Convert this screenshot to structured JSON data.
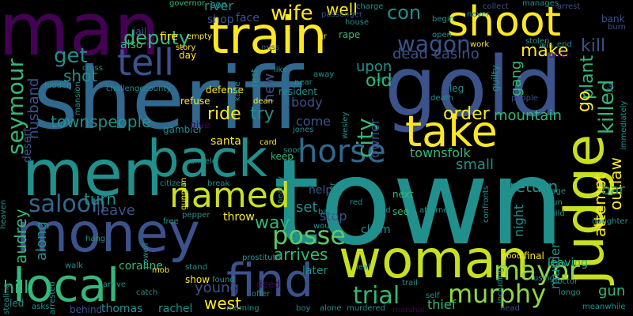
{
  "palette": {
    "background": "#000000",
    "purple": "#440154",
    "indigo": "#3b528b",
    "blue": "#31688e",
    "teal": "#21908d",
    "green": "#35b779",
    "lime": "#90d743",
    "yellow": "#fde725"
  },
  "words": {
    "town": "town",
    "sheriff": "sheriff",
    "gold": "gold",
    "man": "man",
    "men": "men",
    "money": "money",
    "woman": "woman",
    "train": "train",
    "shoot": "shoot",
    "back": "back",
    "local": "local",
    "judge": "judge",
    "take": "take",
    "find": "find",
    "tell": "tell",
    "named": "named",
    "horse": "horse",
    "posse": "posse",
    "mayor": "mayor",
    "murphy": "murphy",
    "trial": "trial",
    "saloon": "saloon",
    "seymour": "seymour",
    "wagon": "wagon",
    "deputy": "deputy",
    "wife": "wife",
    "get": "get",
    "killed": "killed",
    "city": "city",
    "old": "old",
    "con": "con",
    "well": "well",
    "shot": "shot",
    "dead": "dead",
    "casino": "casino",
    "make": "make",
    "kill": "kill",
    "plant": "plant",
    "go": "go",
    "townspeople": "townspeople",
    "townsfolk": "townsfolk",
    "ride": "ride",
    "try": "try",
    "come": "come",
    "order": "order",
    "mountain": "mountain",
    "return": "return",
    "outlaw": "outlaw",
    "attempt": "attempt",
    "small": "small",
    "turn": "turn",
    "leave": "leave",
    "way": "way",
    "set": "set",
    "stop": "stop",
    "arrives": "arrives",
    "young": "young",
    "west": "west",
    "hill": "hill",
    "audrey": "audrey",
    "along": "along",
    "husband": "husband",
    "upon": "upon",
    "new": "new",
    "body": "body",
    "owner": "owner",
    "gang": "gang",
    "night": "night",
    "murder": "murder",
    "bar": "bar",
    "gun": "gun",
    "leaving": "leaving",
    "river": "river",
    "shop": "shop",
    "face": "face",
    "help": "help",
    "santa": "santa",
    "desert": "desert",
    "later": "later",
    "claim": "claim",
    "coraline": "coraline",
    "show": "show",
    "also": "also",
    "fire": "fire",
    "defense": "defense",
    "resident": "resident",
    "refuse": "refuse",
    "gambler": "gambler",
    "thomas": "thomas",
    "rachel": "rachel",
    "thief": "thief",
    "final": "final",
    "next": "next",
    "see": "see",
    "keep": "keep",
    "son": "son",
    "governor": "governor",
    "day": "day",
    "jail": "jail",
    "miss": "miss",
    "passenger": "passenger",
    "rape": "rape",
    "collect": "collect",
    "arrest": "arrest",
    "bank": "bank",
    "burn": "burn",
    "people": "people",
    "life": "life",
    "leg": "leg",
    "guilty": "guilty",
    "death": "death",
    "wesley": "wesley",
    "katie": "katie",
    "rest": "rest",
    "dean": "dean",
    "jones": "jones",
    "soon": "soon",
    "card": "card",
    "give": "give",
    "angelo": "angelo",
    "break": "break",
    "citizen": "citizen",
    "free": "free",
    "pepper": "pepper",
    "story": "story",
    "throw": "throw",
    "led": "led",
    "asks": "asks",
    "walk": "walk",
    "behind": "behind",
    "morning": "morning",
    "boy": "boy",
    "alone": "alone",
    "murdered": "murdered",
    "head": "head",
    "longo": "longo",
    "meanwhile": "meanwhile",
    "doctor": "doctor",
    "stand": "stand",
    "found": "found",
    "arrive": "arrive",
    "offer": "offer",
    "deed": "deed",
    "leaf": "leaf",
    "trail": "trail",
    "good": "good",
    "child": "child",
    "run": "run",
    "page": "page",
    "stolen": "stolen",
    "end": "end",
    "win": "win",
    "work": "work",
    "begin": "begin",
    "never": "never",
    "charge": "charge",
    "house": "house",
    "jr": "jr",
    "empty": "empty",
    "challenge": "challenge",
    "county": "county",
    "hidden": "hidden",
    "mansion": "mansion",
    "cross": "cross",
    "heaven": "heaven",
    "hang": "hang",
    "stealing": "stealing",
    "arrested": "arrested",
    "gunman": "gunman",
    "mob": "mob",
    "nearby": "nearby",
    "together": "together",
    "would": "would",
    "prostitute": "prostitute",
    "catch": "catch",
    "using": "using",
    "draw": "draw",
    "including": "including",
    "marshal": "marshal",
    "like": "like",
    "near": "near",
    "away": "away",
    "carry": "carry",
    "red": "red",
    "band": "band",
    "hold": "hold",
    "attorney": "attorney",
    "confronts": "confronts",
    "daughter": "daughter",
    "immediately": "immediately",
    "self": "self",
    "open": "open",
    "taken": "taken",
    "manages": "manages",
    "powell": "powell"
  }
}
